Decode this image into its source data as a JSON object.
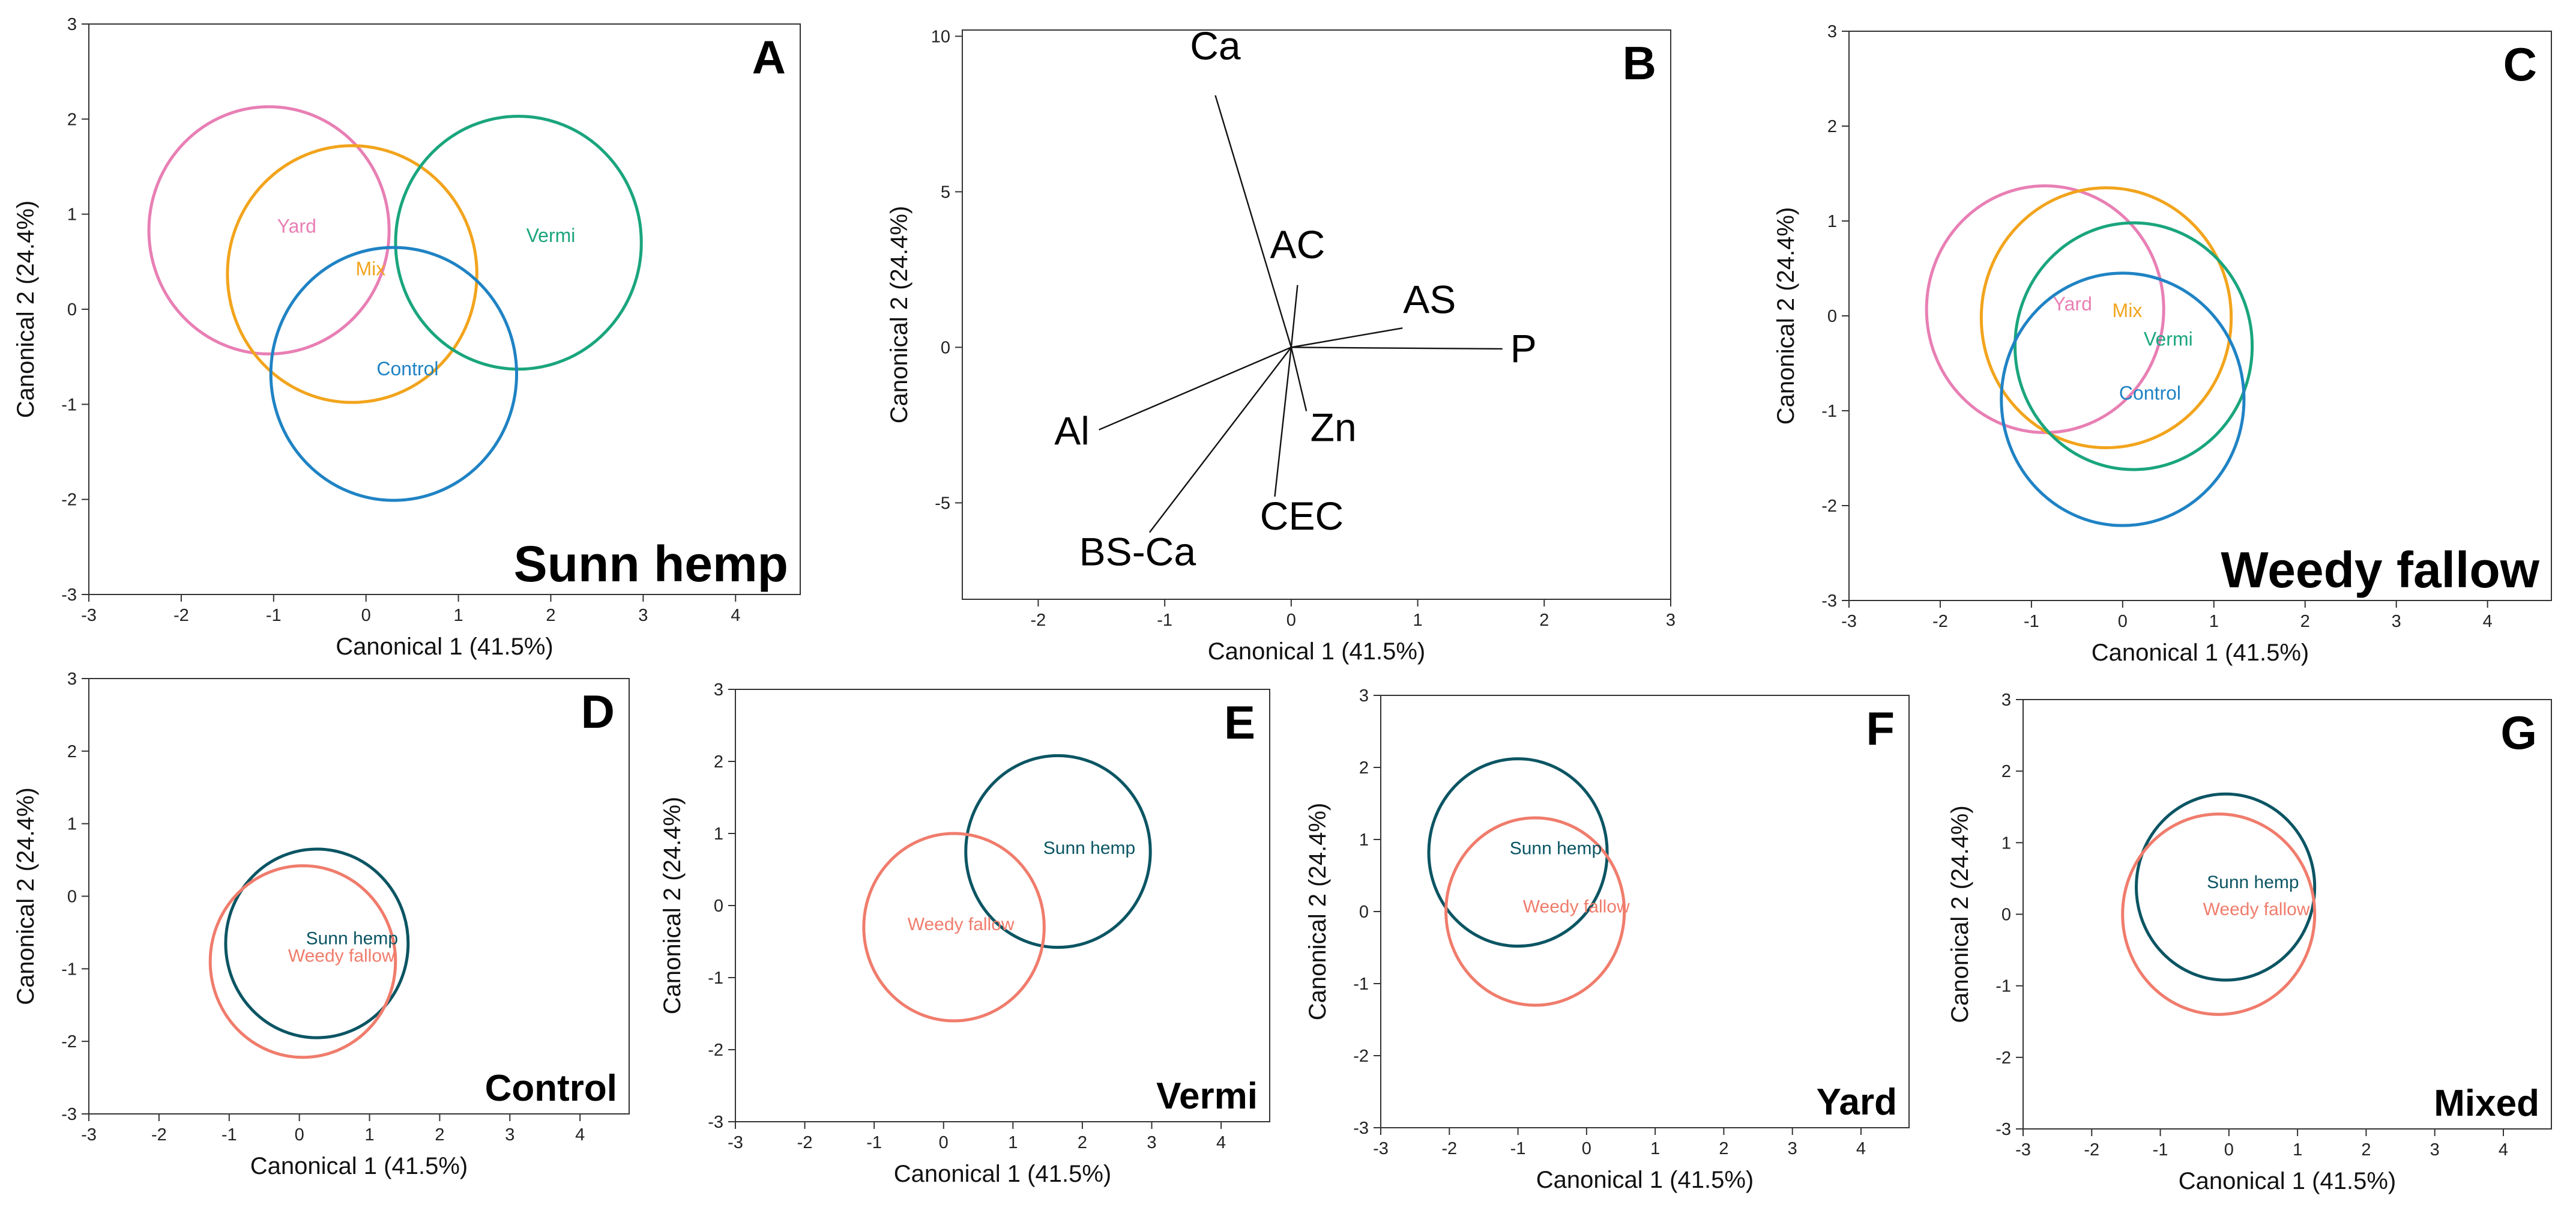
{
  "figure": {
    "x_axis_label": "Canonical 1 (41.5%)",
    "y_axis_label": "Canonical 2 (24.4%)"
  },
  "colors": {
    "yard": "#e87fb4",
    "mix": "#f2a41c",
    "vermi": "#1aa57d",
    "control": "#1f83c4",
    "sunn_hemp": "#0b5563",
    "weedy_fallow": "#f07c6c",
    "vector": "#111111"
  },
  "chart_data": [
    {
      "id": "A",
      "letter": "A",
      "type": "scatter",
      "title": "Sunn hemp",
      "xlabel": "Canonical 1 (41.5%)",
      "ylabel": "Canonical 2 (24.4%)",
      "xlim": [
        -3,
        4.7
      ],
      "ylim": [
        -3,
        3
      ],
      "xticks": [
        -3,
        -2,
        -1,
        0,
        1,
        2,
        3,
        4
      ],
      "yticks": [
        -3,
        -2,
        -1,
        0,
        1,
        2,
        3
      ],
      "series": [
        {
          "name": "Yard",
          "type": "circle",
          "cx": -1.05,
          "cy": 0.83,
          "r": 1.3,
          "color": "#e87fb4",
          "label_x": -0.75,
          "label_y": 0.87
        },
        {
          "name": "Mix",
          "type": "circle",
          "cx": -0.15,
          "cy": 0.37,
          "r": 1.35,
          "color": "#f2a41c",
          "label_x": 0.05,
          "label_y": 0.42
        },
        {
          "name": "Vermi",
          "type": "circle",
          "cx": 1.65,
          "cy": 0.7,
          "r": 1.33,
          "color": "#1aa57d",
          "label_x": 2.0,
          "label_y": 0.77
        },
        {
          "name": "Control",
          "type": "circle",
          "cx": 0.3,
          "cy": -0.68,
          "r": 1.33,
          "color": "#1f83c4",
          "label_x": 0.45,
          "label_y": -0.63
        }
      ]
    },
    {
      "id": "B",
      "letter": "B",
      "type": "biplot",
      "title": "",
      "xlabel": "Canonical 1 (41.5%)",
      "ylabel": "Canonical 2 (24.4%)",
      "xlim": [
        -2.6,
        3.0
      ],
      "ylim": [
        -8.1,
        10.2
      ],
      "xticks": [
        -2,
        -1,
        0,
        1,
        2,
        3
      ],
      "yticks": [
        -5,
        0,
        5,
        10
      ],
      "vectors": [
        {
          "name": "Ca",
          "x": -0.6,
          "y": 8.1
        },
        {
          "name": "AC",
          "x": 0.05,
          "y": 2.0
        },
        {
          "name": "AS",
          "x": 0.88,
          "y": 0.62
        },
        {
          "name": "P",
          "x": 1.67,
          "y": -0.05
        },
        {
          "name": "Zn",
          "x": 0.12,
          "y": -2.05
        },
        {
          "name": "CEC",
          "x": -0.13,
          "y": -4.8
        },
        {
          "name": "BS-Ca",
          "x": -1.12,
          "y": -5.95
        },
        {
          "name": "Al",
          "x": -1.52,
          "y": -2.65
        }
      ]
    },
    {
      "id": "C",
      "letter": "C",
      "type": "scatter",
      "title": "Weedy fallow",
      "xlabel": "Canonical 1 (41.5%)",
      "ylabel": "Canonical 2 (24.4%)",
      "xlim": [
        -3,
        4.7
      ],
      "ylim": [
        -3,
        3
      ],
      "xticks": [
        -3,
        -2,
        -1,
        0,
        1,
        2,
        3,
        4
      ],
      "yticks": [
        -3,
        -2,
        -1,
        0,
        1,
        2,
        3
      ],
      "series": [
        {
          "name": "Yard",
          "type": "circle",
          "cx": -0.85,
          "cy": 0.07,
          "r": 1.3,
          "color": "#e87fb4",
          "label_x": -0.55,
          "label_y": 0.12
        },
        {
          "name": "Mix",
          "type": "circle",
          "cx": -0.18,
          "cy": -0.02,
          "r": 1.37,
          "color": "#f2a41c",
          "label_x": 0.05,
          "label_y": 0.05
        },
        {
          "name": "Vermi",
          "type": "circle",
          "cx": 0.12,
          "cy": -0.32,
          "r": 1.3,
          "color": "#1aa57d",
          "label_x": 0.5,
          "label_y": -0.25
        },
        {
          "name": "Control",
          "type": "circle",
          "cx": 0.0,
          "cy": -0.88,
          "r": 1.33,
          "color": "#1f83c4",
          "label_x": 0.3,
          "label_y": -0.82
        }
      ]
    },
    {
      "id": "D",
      "letter": "D",
      "type": "scatter",
      "title": "Control",
      "xlabel": "Canonical 1 (41.5%)",
      "ylabel": "Canonical 2 (24.4%)",
      "xlim": [
        -3,
        4.7
      ],
      "ylim": [
        -3,
        3
      ],
      "xticks": [
        -3,
        -2,
        -1,
        0,
        1,
        2,
        3,
        4
      ],
      "yticks": [
        -3,
        -2,
        -1,
        0,
        1,
        2,
        3
      ],
      "series": [
        {
          "name": "Sunn hemp",
          "type": "circle",
          "cx": 0.25,
          "cy": -0.65,
          "r": 1.3,
          "color": "#0b5563",
          "label_x": 0.75,
          "label_y": -0.58
        },
        {
          "name": "Weedy fallow",
          "type": "circle",
          "cx": 0.05,
          "cy": -0.9,
          "r": 1.32,
          "color": "#f07c6c",
          "label_x": 0.6,
          "label_y": -0.82
        }
      ]
    },
    {
      "id": "E",
      "letter": "E",
      "type": "scatter",
      "title": "Vermi",
      "xlabel": "Canonical 1 (41.5%)",
      "ylabel": "Canonical 2 (24.4%)",
      "xlim": [
        -3,
        4.7
      ],
      "ylim": [
        -3,
        3
      ],
      "xticks": [
        -3,
        -2,
        -1,
        0,
        1,
        2,
        3,
        4
      ],
      "yticks": [
        -3,
        -2,
        -1,
        0,
        1,
        2,
        3
      ],
      "series": [
        {
          "name": "Sunn hemp",
          "type": "circle",
          "cx": 1.65,
          "cy": 0.75,
          "r": 1.33,
          "color": "#0b5563",
          "label_x": 2.1,
          "label_y": 0.8
        },
        {
          "name": "Weedy fallow",
          "type": "circle",
          "cx": 0.15,
          "cy": -0.3,
          "r": 1.3,
          "color": "#f07c6c",
          "label_x": 0.25,
          "label_y": -0.26
        }
      ]
    },
    {
      "id": "F",
      "letter": "F",
      "type": "scatter",
      "title": "Yard",
      "xlabel": "Canonical 1 (41.5%)",
      "ylabel": "Canonical 2 (24.4%)",
      "xlim": [
        -3,
        4.7
      ],
      "ylim": [
        -3,
        3
      ],
      "xticks": [
        -3,
        -2,
        -1,
        0,
        1,
        2,
        3,
        4
      ],
      "yticks": [
        -3,
        -2,
        -1,
        0,
        1,
        2,
        3
      ],
      "series": [
        {
          "name": "Sunn hemp",
          "type": "circle",
          "cx": -1.0,
          "cy": 0.82,
          "r": 1.3,
          "color": "#0b5563",
          "label_x": -0.45,
          "label_y": 0.88
        },
        {
          "name": "Weedy fallow",
          "type": "circle",
          "cx": -0.75,
          "cy": 0.0,
          "r": 1.3,
          "color": "#f07c6c",
          "label_x": -0.15,
          "label_y": 0.07
        }
      ]
    },
    {
      "id": "G",
      "letter": "G",
      "type": "scatter",
      "title": "Mixed",
      "xlabel": "Canonical 1 (41.5%)",
      "ylabel": "Canonical 2 (24.4%)",
      "xlim": [
        -3,
        4.7
      ],
      "ylim": [
        -3,
        3
      ],
      "xticks": [
        -3,
        -2,
        -1,
        0,
        1,
        2,
        3,
        4
      ],
      "yticks": [
        -3,
        -2,
        -1,
        0,
        1,
        2,
        3
      ],
      "series": [
        {
          "name": "Sunn hemp",
          "type": "circle",
          "cx": -0.05,
          "cy": 0.38,
          "r": 1.3,
          "color": "#0b5563",
          "label_x": 0.35,
          "label_y": 0.45
        },
        {
          "name": "Weedy fallow",
          "type": "circle",
          "cx": -0.15,
          "cy": 0.0,
          "r": 1.4,
          "color": "#f07c6c",
          "label_x": 0.4,
          "label_y": 0.07
        }
      ]
    }
  ]
}
